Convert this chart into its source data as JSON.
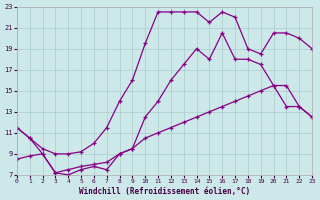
{
  "xlabel": "Windchill (Refroidissement éolien,°C)",
  "background_color": "#cce8e8",
  "grid_color": "#aacccc",
  "line_color": "#880088",
  "xlim": [
    0,
    23
  ],
  "ylim": [
    7,
    23
  ],
  "xticks": [
    0,
    1,
    2,
    3,
    4,
    5,
    6,
    7,
    8,
    9,
    10,
    11,
    12,
    13,
    14,
    15,
    16,
    17,
    18,
    19,
    20,
    21,
    22,
    23
  ],
  "yticks": [
    7,
    9,
    11,
    13,
    15,
    17,
    19,
    21,
    23
  ],
  "series": [
    {
      "x": [
        0,
        1,
        2,
        3,
        4,
        5,
        6,
        7,
        8,
        9,
        10,
        11,
        12,
        13,
        14,
        15,
        16,
        17,
        18,
        19,
        20,
        21,
        22,
        23
      ],
      "y": [
        11.5,
        10.5,
        9.5,
        9.0,
        9.0,
        9.2,
        10.0,
        11.5,
        14.0,
        16.0,
        19.5,
        22.5,
        22.5,
        22.5,
        22.5,
        21.5,
        22.5,
        22.0,
        19.0,
        18.5,
        20.5,
        20.5,
        20.0,
        19.0
      ]
    },
    {
      "x": [
        0,
        1,
        2,
        3,
        4,
        5,
        6,
        7,
        8,
        9,
        10,
        11,
        12,
        13,
        14,
        15,
        16,
        17,
        18,
        19,
        20,
        21,
        22,
        23
      ],
      "y": [
        11.5,
        10.5,
        9.0,
        7.2,
        7.0,
        7.5,
        7.8,
        7.5,
        9.0,
        9.5,
        12.5,
        14.0,
        16.0,
        17.5,
        19.0,
        18.0,
        20.5,
        18.0,
        18.0,
        17.5,
        15.5,
        13.5,
        13.5,
        12.5
      ]
    },
    {
      "x": [
        0,
        1,
        2,
        3,
        4,
        5,
        6,
        7,
        8,
        9,
        10,
        11,
        12,
        13,
        14,
        15,
        16,
        17,
        18,
        19,
        20,
        21,
        22,
        23
      ],
      "y": [
        8.5,
        8.8,
        9.0,
        7.2,
        7.5,
        7.8,
        8.0,
        8.2,
        9.0,
        9.5,
        10.5,
        11.0,
        11.5,
        12.0,
        12.5,
        13.0,
        13.5,
        14.0,
        14.5,
        15.0,
        15.5,
        15.5,
        13.5,
        12.5
      ]
    }
  ]
}
